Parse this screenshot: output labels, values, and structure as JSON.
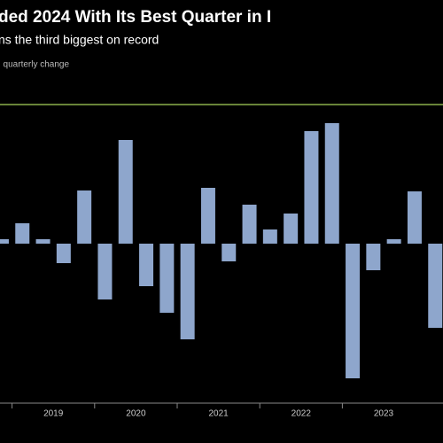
{
  "chart_data": {
    "type": "bar",
    "title": "ded 2024 With Its Best Quarter in I",
    "subtitle": "ns the third biggest on record",
    "axis_label": ", quarterly change",
    "categories": [
      null,
      "2019",
      null,
      null,
      null,
      "2020",
      null,
      null,
      null,
      "2021",
      null,
      null,
      null,
      "2022",
      null,
      null,
      null,
      "2023",
      null,
      null,
      null,
      null
    ],
    "values": [
      0.5,
      2.3,
      0.5,
      -2.2,
      6.0,
      -6.3,
      11.7,
      -4.8,
      -7.8,
      -10.8,
      6.3,
      -2.0,
      4.4,
      1.6,
      3.4,
      12.7,
      13.6,
      -15.2,
      -3.0,
      0.5,
      5.9,
      -9.5
    ],
    "color": "#8ea6cc",
    "reference_line": 15.7,
    "reference_color": "#8bb04a",
    "ylim": [
      -18,
      19
    ]
  }
}
